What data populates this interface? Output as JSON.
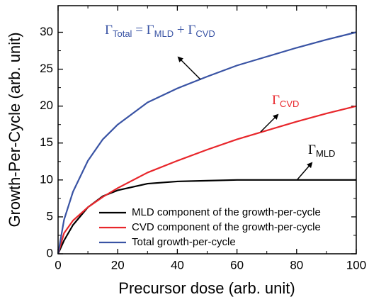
{
  "chart_data": {
    "type": "line",
    "x_label": "Precursor dose (arb. unit)",
    "y_label": "Growth-Per-Cycle (arb. unit)",
    "x": [
      0,
      2,
      5,
      10,
      15,
      20,
      30,
      40,
      50,
      60,
      70,
      80,
      90,
      100
    ],
    "series": [
      {
        "name": "MLD component of the growth-per-cycle",
        "color": "#000000",
        "values": [
          0,
          1.8,
          3.9,
          6.3,
          7.8,
          8.6,
          9.5,
          9.8,
          9.9,
          10,
          10,
          10,
          10,
          10
        ]
      },
      {
        "name": "CVD component of the growth-per-cycle",
        "color": "#e8262b",
        "values": [
          0,
          2.8,
          4.5,
          6.3,
          7.7,
          8.9,
          11,
          12.6,
          14.1,
          15.5,
          16.7,
          17.9,
          19,
          20
        ]
      },
      {
        "name": "Total growth-per-cycle",
        "color": "#3953a4",
        "values": [
          0,
          4.6,
          8.4,
          12.6,
          15.5,
          17.5,
          20.5,
          22.4,
          24,
          25.5,
          26.7,
          27.9,
          29,
          30
        ]
      }
    ],
    "xlim": [
      0,
      100
    ],
    "xticks": [
      0,
      20,
      40,
      60,
      80,
      100
    ],
    "ylim": [
      0,
      33.6
    ],
    "yticks": [
      0,
      5,
      10,
      15,
      20,
      25,
      30
    ],
    "legend": "lower right",
    "annotations": [
      {
        "parts": [
          "Γ",
          "Total",
          " = Γ",
          "MLD",
          " + Γ",
          "CVD"
        ],
        "color": "#3953a4"
      },
      {
        "parts": [
          "Γ",
          "CVD"
        ],
        "color": "#e8262b"
      },
      {
        "parts": [
          "Γ",
          "MLD"
        ],
        "color": "#000000"
      }
    ]
  }
}
